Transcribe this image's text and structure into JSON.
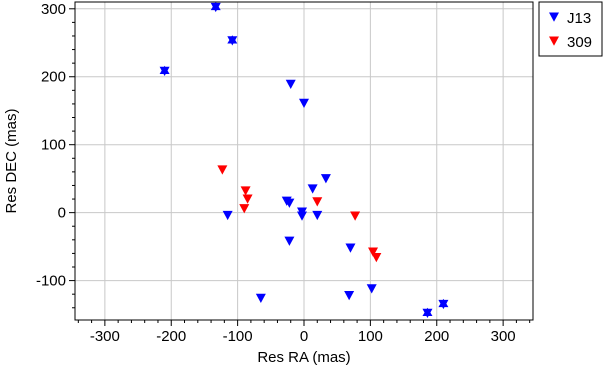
{
  "chart_data": {
    "type": "scatter",
    "title": "",
    "xlabel": "Res RA (mas)",
    "ylabel": "Res DEC (mas)",
    "xlim": [
      -345,
      345
    ],
    "ylim": [
      -158,
      310
    ],
    "xticks": [
      -300,
      -200,
      -100,
      0,
      100,
      200,
      300
    ],
    "yticks": [
      -100,
      0,
      100,
      200,
      300
    ],
    "grid": true,
    "legend_position": "outside-top-right",
    "series": [
      {
        "name": "J13",
        "color": "#0000ff",
        "marker": "triangle-down",
        "points": [
          {
            "x": -133,
            "y": 302,
            "star": true
          },
          {
            "x": -108,
            "y": 253,
            "star": true
          },
          {
            "x": -210,
            "y": 208,
            "star": true
          },
          {
            "x": -20,
            "y": 189
          },
          {
            "x": 0,
            "y": 161
          },
          {
            "x": 33,
            "y": 50
          },
          {
            "x": 13,
            "y": 35
          },
          {
            "x": -26,
            "y": 17
          },
          {
            "x": -22,
            "y": 14
          },
          {
            "x": -3,
            "y": 1
          },
          {
            "x": -3,
            "y": -5
          },
          {
            "x": -115,
            "y": -4
          },
          {
            "x": 20,
            "y": -4
          },
          {
            "x": -22,
            "y": -42
          },
          {
            "x": 70,
            "y": -52
          },
          {
            "x": -65,
            "y": -126
          },
          {
            "x": 68,
            "y": -122
          },
          {
            "x": 102,
            "y": -112
          },
          {
            "x": 210,
            "y": -135,
            "star": true
          },
          {
            "x": 186,
            "y": -148,
            "star": true
          }
        ]
      },
      {
        "name": "309",
        "color": "#ff0000",
        "marker": "triangle-down",
        "points": [
          {
            "x": -123,
            "y": 63
          },
          {
            "x": -88,
            "y": 32
          },
          {
            "x": -85,
            "y": 20
          },
          {
            "x": -90,
            "y": 6
          },
          {
            "x": 20,
            "y": 16
          },
          {
            "x": 77,
            "y": -5
          },
          {
            "x": 104,
            "y": -58
          },
          {
            "x": 109,
            "y": -66
          }
        ]
      }
    ]
  }
}
